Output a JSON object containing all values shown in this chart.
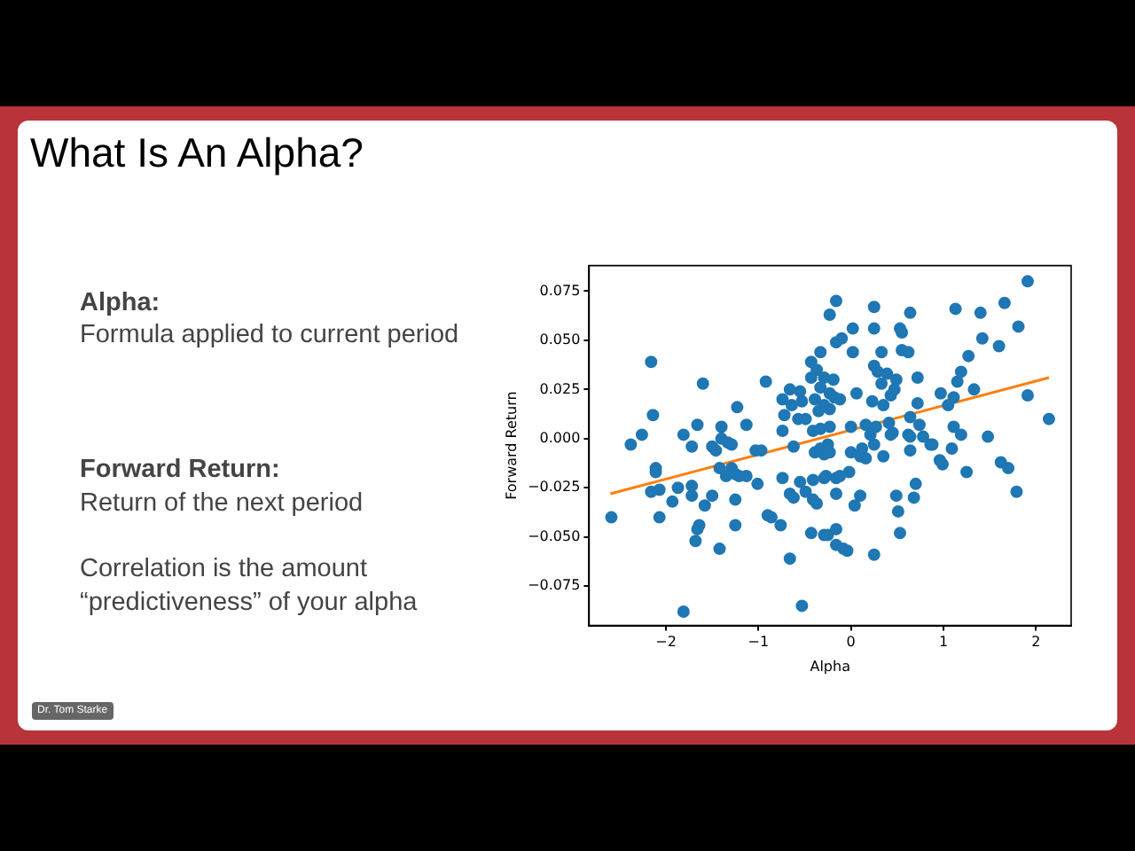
{
  "chart_data": {
    "type": "scatter",
    "title": "What Is An Alpha?",
    "xlabel": "Alpha",
    "ylabel": "Forward Return",
    "annotations": [
      "Alpha:",
      "Formula applied to current period",
      "Forward Return:",
      "Return of the next period",
      "Correlation is the amount “predictiveness”  of your alpha",
      "Dr. Tom Starke"
    ],
    "xlim": [
      -2.83,
      2.38
    ],
    "ylim": [
      -0.095,
      0.088
    ],
    "xticks": [
      {
        "value": -2,
        "label": "−2"
      },
      {
        "value": -1,
        "label": "−1"
      },
      0,
      1,
      2
    ],
    "yticks": [
      {
        "value": -0.075,
        "label": "−0.075"
      },
      {
        "value": -0.05,
        "label": "−0.050"
      },
      {
        "value": -0.025,
        "label": "−0.025"
      },
      {
        "value": 0,
        "label": "0.000"
      },
      {
        "value": 0.025,
        "label": "0.025"
      },
      {
        "value": 0.05,
        "label": "0.050"
      },
      {
        "value": 0.075,
        "label": "0.075"
      }
    ],
    "grid": false,
    "legend": false,
    "series": [
      {
        "marker": "circle",
        "color": "#1f77b4",
        "x": [
          -2.16,
          -1.6,
          -0.92,
          -2.14,
          -1.23,
          -2.26,
          -2.38,
          -1.81,
          -1.66,
          -1.4,
          -1.13,
          -1.5,
          -0.74,
          -0.66,
          -0.55,
          -0.64,
          -0.53,
          -0.72,
          -0.57,
          -0.49,
          -0.74,
          -0.43,
          -0.33,
          -0.37,
          -0.43,
          -0.29,
          -0.33,
          -0.39,
          -0.29,
          -0.35,
          -0.23,
          -0.41,
          -0.33,
          1.91,
          1.66,
          1.81,
          1.4,
          1.13,
          1.42,
          1.6,
          1.27,
          1.19,
          1.15,
          1.33,
          1.11,
          0.97,
          1.05,
          1.91,
          2.14,
          -0.16,
          0.25,
          0.64,
          0.02,
          0.25,
          0.53,
          0.55,
          -0.16,
          -0.1,
          0.02,
          0.33,
          0.55,
          0.62,
          0.25,
          0.29,
          0.39,
          0.49,
          0.33,
          0.47,
          0.43,
          -0.19,
          -0.23,
          -0.18,
          -0.12,
          -0.23,
          0.06,
          0.23,
          0.35,
          0.72,
          0.72,
          0.64,
          0.74,
          0.0,
          0.16,
          0.27,
          0.41,
          0.45,
          -0.23,
          0.21,
          0.62,
          0.78,
          0.88,
          1.11,
          1.19,
          1.48,
          -2.59,
          -2.16,
          -2.07,
          -2.11,
          -2.11,
          -2.07,
          -1.93,
          -1.87,
          -1.72,
          -1.72,
          -1.72,
          -1.58,
          -1.5,
          -1.64,
          -1.66,
          -1.68,
          -1.42,
          -1.81,
          -1.46,
          -1.4,
          -1.33,
          -1.29,
          -1.42,
          -1.29,
          -1.35,
          -1.25,
          -1.21,
          -1.13,
          -1.25,
          -1.25,
          -1.01,
          -1.03,
          -0.97,
          -0.9,
          -0.86,
          -0.76,
          -0.66,
          -0.53,
          -0.74,
          -0.66,
          -0.62,
          -0.55,
          -0.49,
          -0.41,
          -0.37,
          -0.41,
          -0.29,
          -0.43,
          -0.29,
          -0.62,
          -0.39,
          -0.29,
          -0.33,
          -0.23,
          -0.25,
          -0.27,
          -0.16,
          -0.12,
          -0.02,
          0.0,
          0.1,
          0.16,
          0.12,
          0.25,
          0.35,
          -0.16,
          0.04,
          0.1,
          -0.25,
          -0.16,
          -0.16,
          -0.08,
          -0.04,
          0.25,
          0.43,
          0.64,
          0.64,
          0.86,
          1.09,
          0.96,
          0.99,
          1.25,
          1.62,
          1.7,
          1.79,
          0.49,
          0.51,
          0.53,
          0.68,
          0.7
        ],
        "values": [
          0.039,
          0.028,
          0.029,
          0.012,
          0.016,
          0.002,
          -0.003,
          0.002,
          0.007,
          0.006,
          0.007,
          -0.004,
          0.02,
          0.025,
          0.024,
          0.017,
          0.019,
          0.012,
          0.01,
          0.01,
          0.004,
          0.039,
          0.044,
          0.035,
          0.031,
          0.031,
          0.026,
          0.02,
          0.017,
          0.014,
          0.063,
          0.004,
          0.005,
          0.08,
          0.069,
          0.057,
          0.064,
          0.066,
          0.051,
          0.047,
          0.042,
          0.034,
          0.029,
          0.025,
          0.021,
          0.023,
          0.017,
          0.022,
          0.01,
          0.07,
          0.067,
          0.064,
          0.056,
          0.056,
          0.056,
          0.054,
          0.049,
          0.051,
          0.044,
          0.044,
          0.045,
          0.044,
          0.037,
          0.034,
          0.033,
          0.03,
          0.028,
          0.025,
          0.022,
          0.03,
          0.023,
          0.021,
          0.02,
          0.015,
          0.023,
          0.019,
          0.017,
          0.031,
          0.018,
          0.011,
          0.007,
          0.006,
          0.007,
          0.006,
          0.008,
          0.003,
          0.006,
          0.002,
          0.002,
          0.001,
          -0.003,
          0.006,
          0.002,
          0.001,
          -0.04,
          -0.027,
          -0.026,
          -0.015,
          -0.017,
          -0.04,
          -0.032,
          -0.025,
          -0.004,
          -0.024,
          -0.029,
          -0.034,
          -0.029,
          -0.044,
          -0.046,
          -0.052,
          -0.056,
          -0.088,
          -0.006,
          0.0,
          -0.002,
          -0.003,
          -0.015,
          -0.015,
          -0.019,
          -0.018,
          -0.019,
          -0.019,
          -0.031,
          -0.044,
          -0.023,
          -0.006,
          -0.006,
          -0.039,
          -0.04,
          -0.044,
          -0.061,
          -0.085,
          -0.02,
          -0.028,
          -0.03,
          -0.022,
          -0.027,
          -0.031,
          -0.033,
          -0.021,
          -0.02,
          -0.048,
          -0.049,
          -0.004,
          -0.007,
          -0.008,
          -0.005,
          -0.007,
          -0.003,
          -0.019,
          -0.02,
          -0.019,
          -0.017,
          -0.007,
          -0.009,
          -0.01,
          -0.005,
          -0.003,
          -0.009,
          -0.028,
          -0.034,
          -0.029,
          -0.049,
          -0.046,
          -0.054,
          -0.056,
          -0.057,
          -0.059,
          0.002,
          0.001,
          -0.006,
          -0.003,
          -0.005,
          -0.011,
          -0.013,
          -0.017,
          -0.012,
          -0.015,
          -0.027,
          -0.029,
          -0.037,
          -0.048,
          -0.03,
          -0.023
        ]
      },
      {
        "type": "line",
        "marker": "none",
        "color": "#ff7f0e",
        "x": [
          -2.6,
          2.14
        ],
        "values": [
          -0.028,
          0.031
        ]
      }
    ]
  }
}
